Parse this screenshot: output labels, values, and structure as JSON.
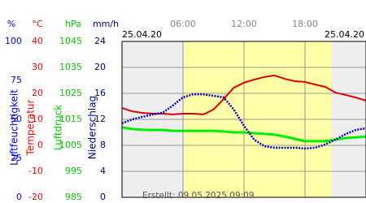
{
  "chart_data": {
    "type": "line",
    "date_left": "25.04.20",
    "date_right": "25.04.20",
    "note": "Erstellt: 09.05.2025 09:09",
    "x": [
      0,
      1,
      2,
      3,
      4,
      5,
      6,
      7,
      8,
      9,
      10,
      11,
      12,
      13,
      14,
      15,
      16,
      17,
      18,
      19,
      20,
      21,
      22,
      23,
      24
    ],
    "xlim": [
      0,
      24
    ],
    "xticks": [
      {
        "value": 6,
        "label": "06:00"
      },
      {
        "value": 12,
        "label": "12:00"
      },
      {
        "value": 18,
        "label": "18:00"
      }
    ],
    "daylight": [
      6.1,
      20.6
    ],
    "grid": true,
    "axes": [
      {
        "unit": "%",
        "label": "Luftfeuchtigkeit",
        "color": "#0000ff",
        "lim": [
          0,
          100
        ],
        "ticks": [
          100,
          75,
          50,
          25,
          0
        ]
      },
      {
        "unit": "°C",
        "label": "Temperatur",
        "color": "#ff0000",
        "lim": [
          -20,
          40
        ],
        "ticks": [
          40,
          30,
          20,
          10,
          0,
          -10,
          -20
        ]
      },
      {
        "unit": "hPa",
        "label": "Luftdruck",
        "color": "#00cc00",
        "lim": [
          985,
          1045
        ],
        "ticks": [
          1045,
          1035,
          1025,
          1015,
          1005,
          995,
          985
        ]
      },
      {
        "unit": "mm/h",
        "label": "Niederschlag",
        "color": "#000080",
        "lim": [
          0,
          24
        ],
        "ticks": [
          24,
          20,
          16,
          12,
          8,
          4,
          0
        ]
      }
    ],
    "series": [
      {
        "axis": 2,
        "color": "#00ee00",
        "values": [
          1011.9,
          1011.3,
          1011.0,
          1010.9,
          1010.9,
          1010.6,
          1010.6,
          1010.6,
          1010.6,
          1010.6,
          1010.3,
          1010.0,
          1010.0,
          1009.7,
          1009.4,
          1009.1,
          1008.4,
          1007.5,
          1006.6,
          1006.6,
          1006.6,
          1007.2,
          1007.8,
          1008.1,
          1008.4
        ]
      },
      {
        "axis": 1,
        "color": "#dd0000",
        "values": [
          14.4,
          13.1,
          12.5,
          12.2,
          12.2,
          11.9,
          12.2,
          12.2,
          11.9,
          13.8,
          17.8,
          22.2,
          24.1,
          25.3,
          26.3,
          26.9,
          25.6,
          24.7,
          24.4,
          23.4,
          22.5,
          20.3,
          19.4,
          18.4,
          17.2
        ]
      },
      {
        "axis": 0,
        "color": "#0000cc",
        "values": [
          47.4,
          50,
          51.6,
          53.1,
          54.2,
          58.9,
          64.1,
          66.1,
          66.1,
          65.1,
          64.1,
          56.3,
          45.8,
          37,
          32.8,
          31.8,
          31.8,
          31.8,
          31.3,
          31.8,
          33.9,
          37,
          40.6,
          43.2,
          44.3
        ]
      }
    ]
  }
}
